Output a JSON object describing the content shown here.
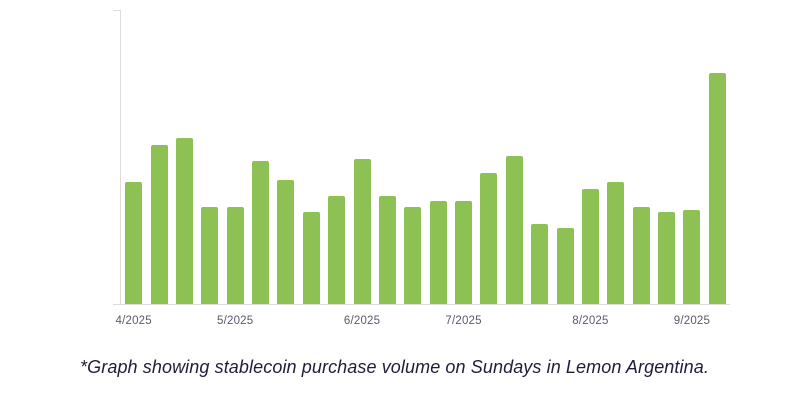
{
  "caption": "*Graph showing stablecoin purchase volume on Sundays in Lemon Argentina.",
  "chart_data": {
    "type": "bar",
    "title": "",
    "xlabel": "",
    "ylabel": "",
    "legend": false,
    "grid": false,
    "bar_color": "#8ec153",
    "axis_color": "#dcdce0",
    "tick_label_color": "#5a5a6e",
    "ylim": [
      0,
      127
    ],
    "categories": [
      "4/2025",
      "",
      "",
      "",
      "5/2025",
      "",
      "",
      "",
      "",
      "6/2025",
      "",
      "",
      "",
      "7/2025",
      "",
      "",
      "",
      "",
      "8/2025",
      "",
      "",
      "",
      "9/2025",
      ""
    ],
    "values": [
      53,
      69,
      72,
      42,
      42,
      62,
      54,
      40,
      47,
      63,
      47,
      42,
      45,
      45,
      57,
      64,
      35,
      33,
      50,
      53,
      42,
      40,
      41,
      100
    ]
  }
}
